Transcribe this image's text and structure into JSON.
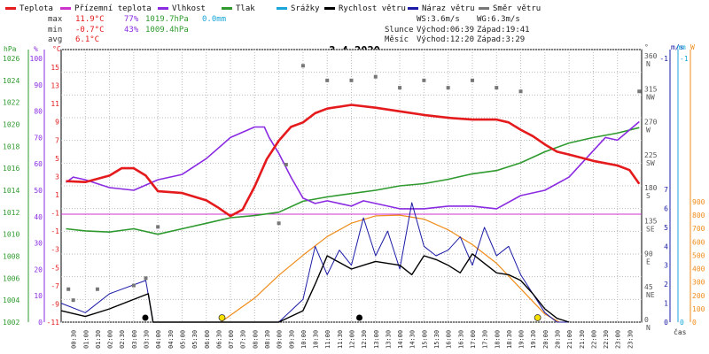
{
  "legend": [
    {
      "label": "Teplota",
      "color": "#e41a1c"
    },
    {
      "label": "Přízemní teplota",
      "color": "#cc33cc"
    },
    {
      "label": "Vlhkost",
      "color": "#8a2be2"
    },
    {
      "label": "Tlak",
      "color": "#2e9a2e"
    },
    {
      "label": "Srážky",
      "color": "#1aa6d9"
    },
    {
      "label": "Rychlost větru",
      "color": "#000000"
    },
    {
      "label": "Náraz větru",
      "color": "#1a1aa6"
    },
    {
      "label": "Směr větru",
      "color": "#777777"
    }
  ],
  "stats": {
    "max_label": "max",
    "max_temp": "11.9°C",
    "max_hum": "77%",
    "max_press": "1019.7hPa",
    "max_rain": "0.0mm",
    "min_label": "min",
    "min_temp": "-0.7°C",
    "min_hum": "43%",
    "min_press": "1009.4hPa",
    "avg_label": "avg",
    "avg_temp": "6.1°C"
  },
  "info": {
    "ws": "WS:3.6m/s",
    "wg": "WG:6.3m/s",
    "sun_label": "Slunce",
    "sun_rise": "Východ:06:39",
    "sun_set": "Západ:19:41",
    "moon_label": "Měsíc",
    "moon_rise": "Východ:12:20",
    "moon_set": "Západ:3:29"
  },
  "date": "3.4.2020",
  "axis_units": {
    "hpa": "hPa",
    "pct": "%",
    "degc": "°C",
    "deg": "°",
    "ms": "m/s",
    "mm": "mm",
    "w": "W",
    "time": "čas"
  },
  "colors": {
    "temp": "#e41a1c",
    "feel": "#cc33cc",
    "hum": "#8a2be2",
    "press": "#2e9a2e",
    "rain": "#1aa6d9",
    "wind": "#000000",
    "gust": "#1a1aa6",
    "dir": "#777777",
    "solar": "#f08c1a"
  },
  "axes": {
    "pressure": {
      "label": "hPa",
      "ticks": [
        "1026",
        "1024",
        "1022",
        "1020",
        "1018",
        "1016",
        "1014",
        "1012",
        "1010",
        "1008",
        "1006",
        "1004",
        "1002"
      ],
      "range": [
        1002,
        1026
      ]
    },
    "humidity": {
      "label": "%",
      "ticks": [
        "100",
        "90",
        "80",
        "70",
        "60",
        "50",
        "40",
        "30",
        "20",
        "10",
        "0"
      ],
      "range": [
        0,
        100
      ]
    },
    "temp_top": {
      "label": "°C",
      "ticks": [
        "15",
        "13",
        "11",
        "9",
        "7",
        "5",
        "3",
        "1",
        "-1"
      ],
      "range": [
        -1,
        16
      ]
    },
    "temp_bottom": {
      "ticks": [
        "-1",
        "-3",
        "-5",
        "-7",
        "-9",
        "-11"
      ]
    },
    "direction": {
      "label": "°",
      "ticks": [
        {
          "v": "360",
          "c": "N"
        },
        {
          "v": "315",
          "c": "NW"
        },
        {
          "v": "270",
          "c": "W"
        },
        {
          "v": "225",
          "c": "SW"
        },
        {
          "v": "180",
          "c": "S"
        },
        {
          "v": "135",
          "c": "SE"
        },
        {
          "v": "90",
          "c": "E"
        },
        {
          "v": "45",
          "c": "NE"
        },
        {
          "v": "0",
          "c": "N"
        }
      ]
    },
    "wind": {
      "label": "m/s",
      "ticks": [
        "-1",
        "7",
        "6",
        "5",
        "4",
        "3",
        "2",
        "1",
        "0"
      ],
      "range": [
        0,
        7
      ]
    },
    "rain": {
      "label": "mm",
      "ticks": [
        "-1",
        "0"
      ]
    },
    "solar": {
      "label": "W",
      "ticks": [
        "900",
        "800",
        "700",
        "600",
        "500",
        "400",
        "300",
        "200",
        "100",
        "0"
      ],
      "range": [
        0,
        900
      ]
    }
  },
  "time_ticks": [
    "00:30",
    "01:00",
    "01:30",
    "02:00",
    "02:30",
    "03:00",
    "03:30",
    "04:00",
    "04:30",
    "05:00",
    "05:30",
    "06:00",
    "06:30",
    "07:00",
    "07:30",
    "08:00",
    "08:30",
    "09:00",
    "09:30",
    "10:00",
    "10:30",
    "11:00",
    "11:30",
    "12:00",
    "12:30",
    "13:00",
    "13:30",
    "14:00",
    "14:30",
    "15:00",
    "15:30",
    "16:00",
    "16:30",
    "17:00",
    "17:30",
    "18:00",
    "18:30",
    "19:00",
    "19:30",
    "20:00",
    "20:30",
    "21:00",
    "21:30",
    "22:00",
    "22:30",
    "23:00",
    "23:30"
  ],
  "chart_data": {
    "type": "line",
    "title": "3.4.2020",
    "x_unit": "hour",
    "series": [
      {
        "name": "Teplota",
        "unit": "°C",
        "points": [
          [
            0.2,
            3.6
          ],
          [
            1,
            3.5
          ],
          [
            2,
            4.2
          ],
          [
            2.5,
            5
          ],
          [
            3,
            5
          ],
          [
            3.5,
            4.2
          ],
          [
            4,
            2.5
          ],
          [
            5,
            2.3
          ],
          [
            6,
            1.5
          ],
          [
            6.5,
            0.7
          ],
          [
            7,
            -0.2
          ],
          [
            7.5,
            0.5
          ],
          [
            8,
            3
          ],
          [
            8.5,
            6
          ],
          [
            9,
            8
          ],
          [
            9.5,
            9.5
          ],
          [
            10,
            10
          ],
          [
            10.5,
            11
          ],
          [
            11,
            11.5
          ],
          [
            12,
            11.9
          ],
          [
            13,
            11.6
          ],
          [
            14,
            11.2
          ],
          [
            15,
            10.8
          ],
          [
            16,
            10.5
          ],
          [
            17,
            10.3
          ],
          [
            18,
            10.3
          ],
          [
            18.5,
            10
          ],
          [
            19,
            9.2
          ],
          [
            19.5,
            8.5
          ],
          [
            20,
            7.6
          ],
          [
            20.5,
            6.8
          ],
          [
            21,
            6.5
          ],
          [
            22,
            5.8
          ],
          [
            23,
            5.3
          ],
          [
            23.5,
            4.8
          ],
          [
            23.9,
            3.3
          ]
        ]
      },
      {
        "name": "Vlhkost",
        "unit": "%",
        "points": [
          [
            0.2,
            53
          ],
          [
            0.5,
            55
          ],
          [
            1,
            54
          ],
          [
            2,
            51
          ],
          [
            3,
            50
          ],
          [
            4,
            54
          ],
          [
            5,
            56
          ],
          [
            6,
            62
          ],
          [
            7,
            70
          ],
          [
            8,
            74
          ],
          [
            8.4,
            74
          ],
          [
            8.6,
            70
          ],
          [
            9,
            64
          ],
          [
            9.5,
            55
          ],
          [
            10,
            47
          ],
          [
            10.5,
            45
          ],
          [
            11,
            46
          ],
          [
            12,
            44
          ],
          [
            12.5,
            46
          ],
          [
            13,
            45
          ],
          [
            14,
            43
          ],
          [
            15,
            43
          ],
          [
            16,
            44
          ],
          [
            17,
            44
          ],
          [
            18,
            43
          ],
          [
            19,
            48
          ],
          [
            20,
            50
          ],
          [
            21,
            55
          ],
          [
            22,
            65
          ],
          [
            22.5,
            70
          ],
          [
            23,
            69
          ],
          [
            23.9,
            76
          ]
        ]
      },
      {
        "name": "Tlak",
        "unit": "hPa",
        "points": [
          [
            0.2,
            1010.5
          ],
          [
            1,
            1010.3
          ],
          [
            2,
            1010.2
          ],
          [
            3,
            1010.5
          ],
          [
            4,
            1010
          ],
          [
            5,
            1010.5
          ],
          [
            6,
            1011
          ],
          [
            7,
            1011.5
          ],
          [
            8,
            1011.7
          ],
          [
            9,
            1012
          ],
          [
            10,
            1013
          ],
          [
            11,
            1013.4
          ],
          [
            12,
            1013.7
          ],
          [
            13,
            1014
          ],
          [
            14,
            1014.4
          ],
          [
            15,
            1014.6
          ],
          [
            16,
            1015
          ],
          [
            17,
            1015.5
          ],
          [
            18,
            1015.8
          ],
          [
            19,
            1016.5
          ],
          [
            20,
            1017.5
          ],
          [
            21,
            1018.3
          ],
          [
            22,
            1018.8
          ],
          [
            23,
            1019.2
          ],
          [
            23.9,
            1019.7
          ]
        ]
      },
      {
        "name": "Rychlost větru",
        "unit": "m/s",
        "points": [
          [
            0,
            0.6
          ],
          [
            1,
            0.3
          ],
          [
            2,
            0.7
          ],
          [
            3.6,
            1.5
          ],
          [
            3.8,
            0
          ],
          [
            5,
            0
          ],
          [
            9,
            0
          ],
          [
            10,
            0.6
          ],
          [
            10.5,
            2
          ],
          [
            11,
            3.5
          ],
          [
            12,
            2.8
          ],
          [
            12.5,
            3
          ],
          [
            13,
            3.2
          ],
          [
            14,
            3
          ],
          [
            14.5,
            2.5
          ],
          [
            15,
            3.5
          ],
          [
            15.5,
            3.3
          ],
          [
            16,
            3
          ],
          [
            16.5,
            2.6
          ],
          [
            17,
            3.6
          ],
          [
            18,
            2.6
          ],
          [
            18.5,
            2.5
          ],
          [
            19,
            2.2
          ],
          [
            19.5,
            1.5
          ],
          [
            20,
            0.7
          ],
          [
            20.5,
            0.2
          ],
          [
            21,
            0
          ]
        ]
      },
      {
        "name": "Náraz větru",
        "unit": "m/s",
        "points": [
          [
            0,
            1
          ],
          [
            1,
            0.5
          ],
          [
            2,
            1.5
          ],
          [
            3.5,
            2.2
          ],
          [
            3.8,
            0
          ],
          [
            9,
            0
          ],
          [
            10,
            1.2
          ],
          [
            10.5,
            4
          ],
          [
            11,
            2.5
          ],
          [
            11.5,
            3.8
          ],
          [
            12,
            3
          ],
          [
            12.5,
            5.5
          ],
          [
            13,
            3.5
          ],
          [
            13.5,
            4.8
          ],
          [
            14,
            2.8
          ],
          [
            14.5,
            6.3
          ],
          [
            15,
            4
          ],
          [
            15.5,
            3.5
          ],
          [
            16,
            3.8
          ],
          [
            16.5,
            4.5
          ],
          [
            17,
            3
          ],
          [
            17.5,
            5
          ],
          [
            18,
            3.5
          ],
          [
            18.5,
            4
          ],
          [
            19,
            2.5
          ],
          [
            19.5,
            1.5
          ],
          [
            20,
            0.5
          ],
          [
            20.5,
            0
          ],
          [
            21,
            0
          ]
        ]
      },
      {
        "name": "Směr větru",
        "unit": "°",
        "points": [
          [
            0.3,
            45
          ],
          [
            0.5,
            30
          ],
          [
            1.5,
            45
          ],
          [
            3,
            50
          ],
          [
            3.5,
            60
          ],
          [
            4,
            130
          ],
          [
            9,
            135
          ],
          [
            9.3,
            215
          ],
          [
            10,
            350
          ],
          [
            11,
            330
          ],
          [
            12,
            330
          ],
          [
            13,
            335
          ],
          [
            14,
            320
          ],
          [
            15,
            330
          ],
          [
            16,
            320
          ],
          [
            17,
            330
          ],
          [
            18,
            320
          ],
          [
            19,
            315
          ],
          [
            23.9,
            315
          ]
        ]
      },
      {
        "name": "Solar",
        "unit": "W",
        "points": [
          [
            6.6,
            0
          ],
          [
            8,
            180
          ],
          [
            9,
            350
          ],
          [
            10,
            500
          ],
          [
            11,
            640
          ],
          [
            12,
            740
          ],
          [
            13,
            795
          ],
          [
            14,
            800
          ],
          [
            15,
            770
          ],
          [
            16,
            690
          ],
          [
            17,
            580
          ],
          [
            18,
            440
          ],
          [
            19,
            250
          ],
          [
            20,
            60
          ],
          [
            20.6,
            0
          ]
        ]
      },
      {
        "name": "Přízemní teplota",
        "unit": "°C",
        "points": [
          [
            0,
            0
          ],
          [
            23.9,
            0
          ]
        ]
      }
    ]
  }
}
